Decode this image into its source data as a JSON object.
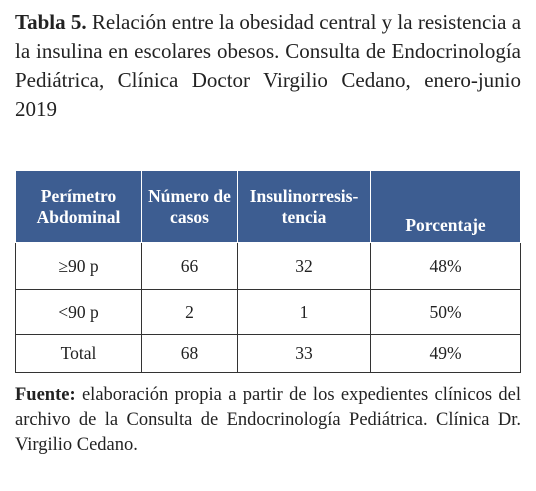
{
  "title": {
    "label": "Tabla 5.",
    "text": "Relación entre la obesidad central y la resis­tencia a la insulina en escolares obesos. Consulta de Endocrinología Pediátrica, Clínica Doctor Virgilio Cedano, enero-junio 2019"
  },
  "table": {
    "header": [
      "Perímetro Abdominal",
      "Número de casos",
      "Insulinorresis­tencia",
      "Porcentaje"
    ],
    "rows": [
      [
        "≥90 p",
        "66",
        "32",
        "48%"
      ],
      [
        "<90 p",
        "2",
        "1",
        "50%"
      ],
      [
        "Total",
        "68",
        "33",
        "49%"
      ]
    ]
  },
  "source": {
    "label": "Fuente:",
    "text": "elaboración propia a partir de los expedientes clínicos del archivo de la Consulta de Endocrinología Pediátrica. Clínica Dr. Virgilio Cedano."
  }
}
